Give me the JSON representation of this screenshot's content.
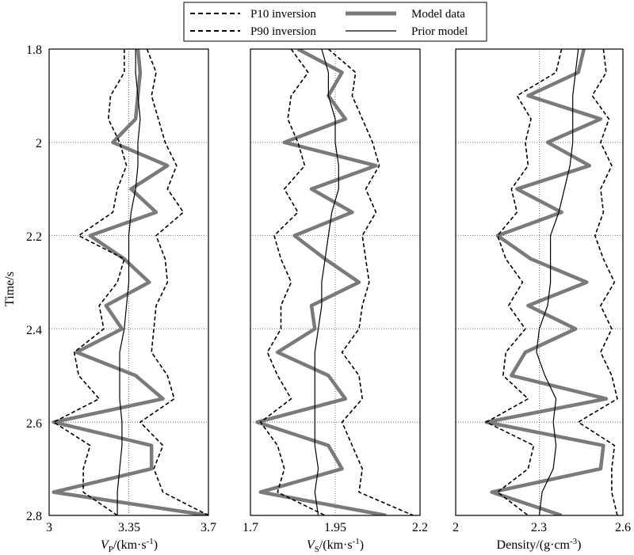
{
  "y_axis": {
    "label": "Time/s",
    "ticks": [
      "1.8",
      "2",
      "2.2",
      "2.4",
      "2.6",
      "2.8"
    ],
    "range": [
      1.8,
      2.8
    ],
    "inverted": true
  },
  "legend": {
    "placement": "top-center",
    "entries": [
      {
        "key": "p10",
        "label": "P10 inversion",
        "style": "dashed"
      },
      {
        "key": "p90",
        "label": "P90 inversion",
        "style": "dashed"
      },
      {
        "key": "model",
        "label": "Model data",
        "style": "thick-gray"
      },
      {
        "key": "prior",
        "label": "Prior model",
        "style": "thin-solid"
      }
    ]
  },
  "colors": {
    "model": "#7a7a7a",
    "p10": "#000000",
    "p90": "#000000",
    "prior": "#000000",
    "grid": "#555555"
  },
  "chart_data": [
    {
      "type": "line",
      "panel": "vp",
      "xlabel_main": "V",
      "xlabel_sub": "P",
      "xlabel_unit": "/(km·s",
      "xlabel_exp": "-1",
      "xlabel_close": ")",
      "xticks": [
        "3",
        "3.35",
        "3.7"
      ],
      "xlim": [
        3.0,
        3.7
      ],
      "grid_x": [
        3.35
      ],
      "y": [
        1.8,
        1.85,
        1.9,
        1.95,
        2.0,
        2.05,
        2.1,
        2.15,
        2.2,
        2.25,
        2.3,
        2.35,
        2.4,
        2.45,
        2.5,
        2.55,
        2.6,
        2.65,
        2.7,
        2.75,
        2.8
      ],
      "series": [
        {
          "name": "Model data",
          "values": [
            3.39,
            3.4,
            3.39,
            3.38,
            3.28,
            3.52,
            3.36,
            3.47,
            3.18,
            3.33,
            3.44,
            3.25,
            3.32,
            3.12,
            3.38,
            3.5,
            3.02,
            3.45,
            3.45,
            3.02,
            3.7
          ]
        },
        {
          "name": "Prior model",
          "values": [
            3.38,
            3.38,
            3.39,
            3.4,
            3.39,
            3.39,
            3.38,
            3.36,
            3.35,
            3.35,
            3.35,
            3.34,
            3.33,
            3.31,
            3.31,
            3.31,
            3.32,
            3.32,
            3.31,
            3.3,
            3.3
          ]
        },
        {
          "name": "P10 inversion",
          "values": [
            3.33,
            3.33,
            3.27,
            3.26,
            3.31,
            3.34,
            3.3,
            3.28,
            3.13,
            3.33,
            3.3,
            3.22,
            3.24,
            3.11,
            3.13,
            3.22,
            3.02,
            3.18,
            3.15,
            3.15,
            3.3
          ]
        },
        {
          "name": "P90 inversion",
          "values": [
            3.43,
            3.47,
            3.45,
            3.48,
            3.51,
            3.56,
            3.52,
            3.59,
            3.47,
            3.51,
            3.52,
            3.47,
            3.46,
            3.45,
            3.52,
            3.55,
            3.4,
            3.5,
            3.46,
            3.5,
            3.7
          ]
        }
      ]
    },
    {
      "type": "line",
      "panel": "vs",
      "xlabel_main": "V",
      "xlabel_sub": "S",
      "xlabel_unit": "/(km·s",
      "xlabel_exp": "-1",
      "xlabel_close": ")",
      "xticks": [
        "1.7",
        "1.95",
        "2.2"
      ],
      "xlim": [
        1.7,
        2.2
      ],
      "grid_x": [
        1.95
      ],
      "y": [
        1.8,
        1.85,
        1.9,
        1.95,
        2.0,
        2.05,
        2.1,
        2.15,
        2.2,
        2.25,
        2.3,
        2.35,
        2.4,
        2.45,
        2.5,
        2.55,
        2.6,
        2.65,
        2.7,
        2.75,
        2.8
      ],
      "series": [
        {
          "name": "Model data",
          "values": [
            1.84,
            1.97,
            1.93,
            1.98,
            1.8,
            2.07,
            1.88,
            2.0,
            1.83,
            1.92,
            2.02,
            1.88,
            1.89,
            1.78,
            1.93,
            1.98,
            1.72,
            1.93,
            1.97,
            1.73,
            2.1
          ]
        },
        {
          "name": "Prior model",
          "values": [
            1.91,
            1.93,
            1.93,
            1.95,
            1.95,
            1.96,
            1.96,
            1.94,
            1.93,
            1.92,
            1.91,
            1.91,
            1.9,
            1.89,
            1.89,
            1.89,
            1.89,
            1.89,
            1.9,
            1.89,
            1.9
          ]
        },
        {
          "name": "P10 inversion",
          "values": [
            1.82,
            1.87,
            1.82,
            1.81,
            1.84,
            1.86,
            1.8,
            1.84,
            1.77,
            1.79,
            1.82,
            1.79,
            1.79,
            1.75,
            1.78,
            1.82,
            1.73,
            1.78,
            1.8,
            1.78,
            1.92
          ]
        },
        {
          "name": "P90 inversion",
          "values": [
            1.93,
            2.01,
            2.0,
            2.03,
            2.06,
            2.08,
            2.04,
            2.07,
            2.03,
            2.04,
            2.05,
            2.03,
            2.02,
            1.97,
            2.02,
            2.03,
            1.97,
            2.0,
            2.03,
            2.02,
            2.18
          ]
        }
      ]
    },
    {
      "type": "line",
      "panel": "density",
      "xlabel_main": "Density/(g·cm",
      "xlabel_sub": "",
      "xlabel_unit": "",
      "xlabel_exp": "-3",
      "xlabel_close": ")",
      "xticks": [
        "2",
        "2.3",
        "2.6"
      ],
      "xlim": [
        2.0,
        2.6
      ],
      "grid_x": [
        2.3
      ],
      "y": [
        1.8,
        1.85,
        1.9,
        1.95,
        2.0,
        2.05,
        2.1,
        2.15,
        2.2,
        2.25,
        2.3,
        2.35,
        2.4,
        2.45,
        2.5,
        2.55,
        2.6,
        2.65,
        2.7,
        2.75,
        2.8
      ],
      "series": [
        {
          "name": "Model data",
          "values": [
            2.46,
            2.44,
            2.26,
            2.52,
            2.33,
            2.48,
            2.22,
            2.38,
            2.15,
            2.27,
            2.47,
            2.26,
            2.43,
            2.25,
            2.2,
            2.54,
            2.11,
            2.53,
            2.52,
            2.13,
            2.38
          ]
        },
        {
          "name": "Prior model",
          "values": [
            2.44,
            2.43,
            2.42,
            2.42,
            2.42,
            2.41,
            2.39,
            2.37,
            2.34,
            2.34,
            2.34,
            2.33,
            2.3,
            2.29,
            2.32,
            2.36,
            2.35,
            2.36,
            2.35,
            2.31,
            2.3
          ]
        },
        {
          "name": "P10 inversion",
          "values": [
            2.38,
            2.36,
            2.22,
            2.27,
            2.25,
            2.26,
            2.2,
            2.22,
            2.15,
            2.18,
            2.24,
            2.19,
            2.25,
            2.18,
            2.17,
            2.26,
            2.11,
            2.28,
            2.26,
            2.15,
            2.26
          ]
        },
        {
          "name": "P90 inversion",
          "values": [
            2.53,
            2.54,
            2.49,
            2.55,
            2.52,
            2.56,
            2.52,
            2.53,
            2.5,
            2.53,
            2.57,
            2.52,
            2.56,
            2.52,
            2.56,
            2.58,
            2.44,
            2.57,
            2.56,
            2.56,
            2.58
          ]
        }
      ]
    }
  ]
}
